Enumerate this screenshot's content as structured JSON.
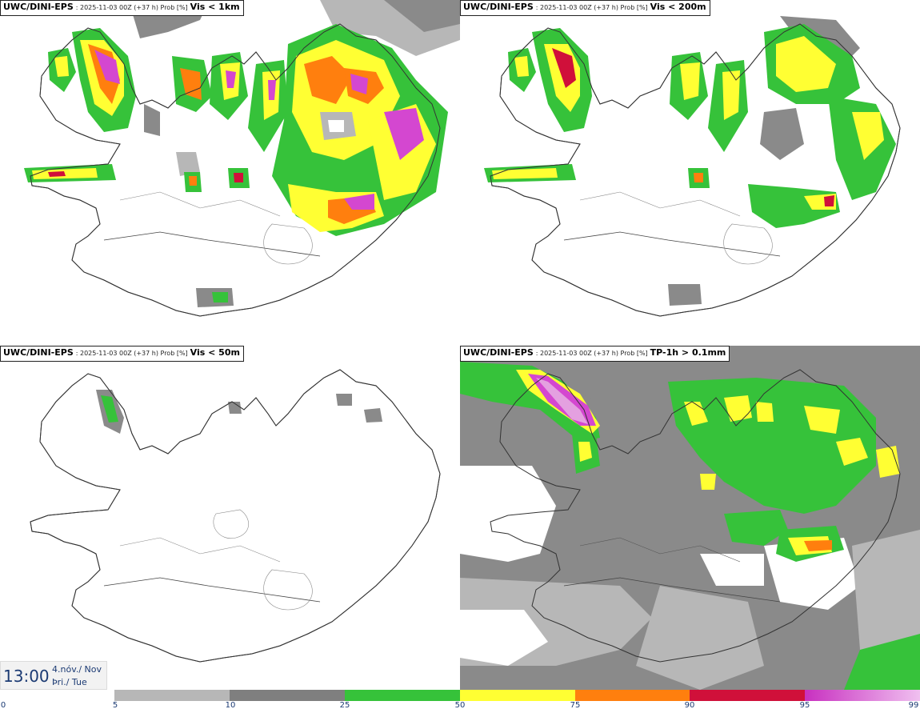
{
  "panels": [
    {
      "model": "UWC/DINI-EPS",
      "meta": ": 2025-11-03 00Z (+37 h) Prob [%]",
      "threshold": "Vis < 1km"
    },
    {
      "model": "UWC/DINI-EPS",
      "meta": ": 2025-11-03 00Z (+37 h) Prob [%]",
      "threshold": "Vis < 200m"
    },
    {
      "model": "UWC/DINI-EPS",
      "meta": ": 2025-11-03 00Z (+37 h) Prob [%]",
      "threshold": "Vis < 50m"
    },
    {
      "model": "UWC/DINI-EPS",
      "meta": ": 2025-11-03 00Z (+37 h) Prob [%]",
      "threshold": "TP-1h > 0.1mm"
    }
  ],
  "time": {
    "clock": "13:00",
    "date_line1": "4.nóv./ Nov",
    "date_line2": "Þri./ Tue"
  },
  "legend": {
    "ticks": [
      "0",
      "5",
      "10",
      "25",
      "50",
      "75",
      "90",
      "95",
      "99"
    ],
    "colors": [
      "#ffffff",
      "#b7b7b7",
      "#7f7f7f",
      "#36c23a",
      "#ffff33",
      "#ff7f0e",
      "#d0103a",
      "#d447d0"
    ]
  }
}
